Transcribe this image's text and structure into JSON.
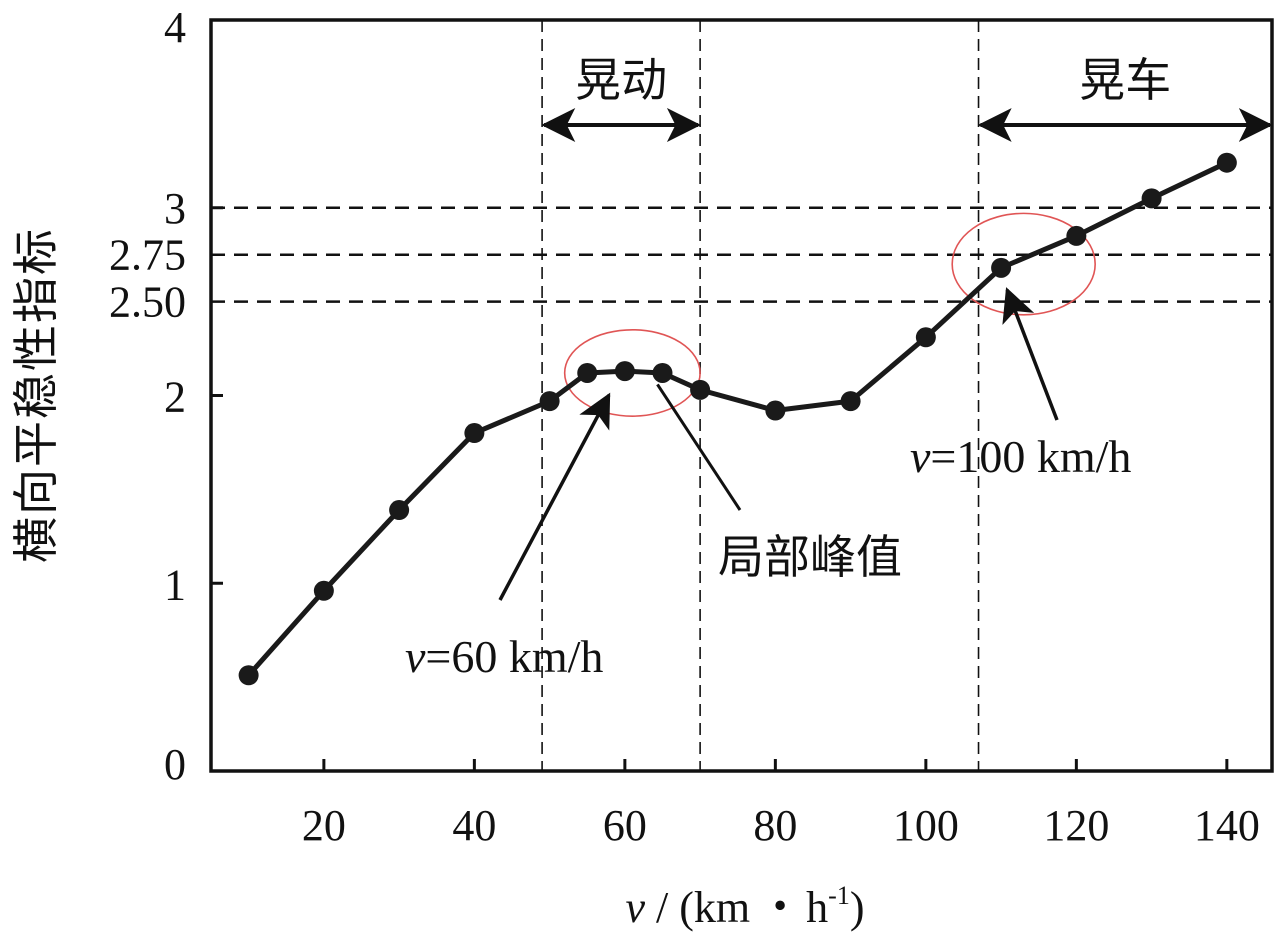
{
  "chart_data": {
    "type": "line",
    "title": "",
    "xlabel": {
      "var": "v",
      "slash": " / (km",
      "dot": "・",
      "unit_base": "h",
      "unit_exp": "-1",
      "close": ")"
    },
    "ylabel": "横向平稳性指标",
    "xlim": [
      5,
      146
    ],
    "ylim": [
      0,
      4
    ],
    "xticks": [
      20,
      40,
      60,
      80,
      100,
      120,
      140
    ],
    "xtick_labels": [
      "20",
      "40",
      "60",
      "80",
      "100",
      "120",
      "140"
    ],
    "yticks": [
      0,
      1,
      2,
      3,
      4
    ],
    "ytick_labels": [
      "0",
      "1",
      "2",
      "3",
      "4"
    ],
    "ref_lines": [
      {
        "value": 3.0,
        "label": "3"
      },
      {
        "value": 2.75,
        "label": "2.75"
      },
      {
        "value": 2.5,
        "label": "2.50"
      }
    ],
    "series": [
      {
        "name": "横向平稳性指标",
        "x": [
          10,
          20,
          30,
          40,
          50,
          55,
          60,
          65,
          70,
          80,
          90,
          100,
          110,
          120,
          130,
          140
        ],
        "values": [
          0.51,
          0.96,
          1.39,
          1.8,
          1.97,
          2.12,
          2.13,
          2.12,
          2.03,
          1.92,
          1.97,
          2.31,
          2.68,
          2.85,
          3.05,
          3.24
        ]
      }
    ],
    "regions": [
      {
        "label": "晃动",
        "x_start": 49,
        "x_end": 70
      },
      {
        "label": "晃车",
        "x_start": 107,
        "x_end": 146
      }
    ],
    "annotations": {
      "v60": {
        "var": "v",
        "rest": "=60 km/h",
        "x": 60,
        "y": 2.13
      },
      "v100": {
        "var": "v",
        "rest": "=100 km/h",
        "x": 110,
        "y": 2.68
      },
      "peak": {
        "text": "局部峰值",
        "x": 63,
        "y": 2.08
      }
    },
    "circles": [
      {
        "cx": 61,
        "cy": 2.12,
        "rx": 9,
        "ry": 0.23
      },
      {
        "cx": 113,
        "cy": 2.7,
        "rx": 9.5,
        "ry": 0.27
      }
    ],
    "colors": {
      "line": "#1a1a1a",
      "axis": "#111111",
      "circle": "#e05555"
    }
  }
}
